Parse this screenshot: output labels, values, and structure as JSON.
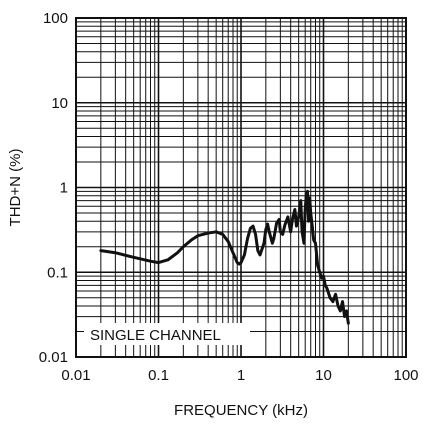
{
  "chart_data": {
    "type": "line",
    "title": "",
    "xlabel": "FREQUENCY (kHz)",
    "ylabel": "THD+N (%)",
    "xscale": "log",
    "yscale": "log",
    "xlim": [
      0.01,
      100
    ],
    "ylim": [
      0.01,
      100
    ],
    "grid": true,
    "annotation": "SINGLE CHANNEL",
    "x_ticks": [
      {
        "value": 0.01,
        "label": "0.01"
      },
      {
        "value": 0.1,
        "label": "0.1"
      },
      {
        "value": 1,
        "label": "1"
      },
      {
        "value": 10,
        "label": "10"
      },
      {
        "value": 100,
        "label": "100"
      }
    ],
    "y_ticks": [
      {
        "value": 0.01,
        "label": "0.01"
      },
      {
        "value": 0.1,
        "label": "0.1"
      },
      {
        "value": 1,
        "label": "1"
      },
      {
        "value": 10,
        "label": "10"
      },
      {
        "value": 100,
        "label": "100"
      }
    ],
    "series": [
      {
        "color": "#111111",
        "points": [
          [
            0.02,
            0.18
          ],
          [
            0.03,
            0.17
          ],
          [
            0.05,
            0.15
          ],
          [
            0.08,
            0.135
          ],
          [
            0.1,
            0.13
          ],
          [
            0.13,
            0.14
          ],
          [
            0.17,
            0.17
          ],
          [
            0.2,
            0.2
          ],
          [
            0.25,
            0.24
          ],
          [
            0.3,
            0.27
          ],
          [
            0.4,
            0.29
          ],
          [
            0.5,
            0.3
          ],
          [
            0.6,
            0.28
          ],
          [
            0.7,
            0.23
          ],
          [
            0.8,
            0.17
          ],
          [
            0.9,
            0.13
          ],
          [
            0.95,
            0.125
          ],
          [
            1.0,
            0.13
          ],
          [
            1.1,
            0.16
          ],
          [
            1.2,
            0.25
          ],
          [
            1.3,
            0.33
          ],
          [
            1.4,
            0.35
          ],
          [
            1.5,
            0.28
          ],
          [
            1.6,
            0.18
          ],
          [
            1.7,
            0.16
          ],
          [
            1.9,
            0.22
          ],
          [
            2.0,
            0.32
          ],
          [
            2.1,
            0.37
          ],
          [
            2.2,
            0.3
          ],
          [
            2.4,
            0.22
          ],
          [
            2.5,
            0.25
          ],
          [
            2.7,
            0.38
          ],
          [
            2.9,
            0.42
          ],
          [
            3.0,
            0.3
          ],
          [
            3.2,
            0.28
          ],
          [
            3.4,
            0.36
          ],
          [
            3.7,
            0.45
          ],
          [
            4.0,
            0.3
          ],
          [
            4.2,
            0.42
          ],
          [
            4.5,
            0.55
          ],
          [
            4.7,
            0.35
          ],
          [
            5.0,
            0.45
          ],
          [
            5.3,
            0.7
          ],
          [
            5.5,
            0.3
          ],
          [
            5.8,
            0.22
          ],
          [
            6.0,
            0.55
          ],
          [
            6.2,
            0.85
          ],
          [
            6.4,
            0.9
          ],
          [
            6.6,
            0.4
          ],
          [
            6.8,
            0.75
          ],
          [
            7.0,
            0.5
          ],
          [
            7.3,
            0.35
          ],
          [
            7.6,
            0.24
          ],
          [
            8.0,
            0.22
          ],
          [
            8.5,
            0.12
          ],
          [
            9.0,
            0.1
          ],
          [
            9.5,
            0.085
          ],
          [
            10.0,
            0.09
          ],
          [
            10.5,
            0.07
          ],
          [
            11.0,
            0.065
          ],
          [
            12.0,
            0.05
          ],
          [
            13.0,
            0.045
          ],
          [
            14.0,
            0.055
          ],
          [
            15.0,
            0.04
          ],
          [
            16.0,
            0.035
          ],
          [
            17.0,
            0.045
          ],
          [
            18.0,
            0.03
          ],
          [
            19.0,
            0.035
          ],
          [
            20.0,
            0.025
          ]
        ]
      }
    ]
  }
}
